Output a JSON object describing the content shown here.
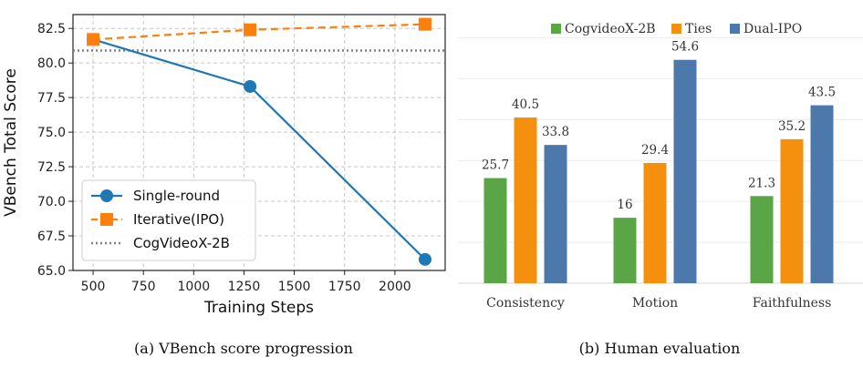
{
  "chart_data": [
    {
      "type": "line",
      "title": "",
      "caption": "(a) VBench score progression",
      "xlabel": "Training Steps",
      "ylabel": "VBench Total Score",
      "xlim": [
        400,
        2250
      ],
      "ylim": [
        65.0,
        83.5
      ],
      "grid": true,
      "xticks": [
        500,
        750,
        1000,
        1250,
        1500,
        1750,
        2000
      ],
      "yticks": [
        65.0,
        67.5,
        70.0,
        72.5,
        75.0,
        77.5,
        80.0,
        82.5
      ],
      "series": [
        {
          "name": "Single-round",
          "x": [
            500,
            1280,
            2150
          ],
          "y": [
            81.7,
            78.3,
            65.8
          ],
          "color": "#1f77b4",
          "style": "solid",
          "marker": "circle"
        },
        {
          "name": "Iterative(IPO)",
          "x": [
            500,
            1280,
            2150
          ],
          "y": [
            81.7,
            82.4,
            82.8
          ],
          "color": "#ff7f0e",
          "style": "dashed",
          "marker": "square"
        }
      ],
      "reference": {
        "name": "CogVideoX-2B",
        "y": 80.9,
        "color": "#808080",
        "style": "dotted"
      },
      "legend_position": "bottom-left"
    },
    {
      "type": "bar",
      "title": "",
      "caption": "(b) Human evaluation",
      "categories": [
        "Consistency",
        "Motion",
        "Faithfulness"
      ],
      "ylim": [
        0,
        63
      ],
      "grid": true,
      "series": [
        {
          "name": "CogvideoX-2B",
          "values": [
            25.7,
            16,
            21.3
          ],
          "labels": [
            "25.7",
            "16",
            "21.3"
          ],
          "color": "#5aa546"
        },
        {
          "name": "Ties",
          "values": [
            40.5,
            29.4,
            35.2
          ],
          "labels": [
            "40.5",
            "29.4",
            "35.2"
          ],
          "color": "#f5900e"
        },
        {
          "name": "Dual-IPO",
          "values": [
            33.8,
            54.6,
            43.5
          ],
          "labels": [
            "33.8",
            "54.6",
            "43.5"
          ],
          "color": "#4d78ab"
        }
      ],
      "legend_position": "top-center"
    }
  ]
}
